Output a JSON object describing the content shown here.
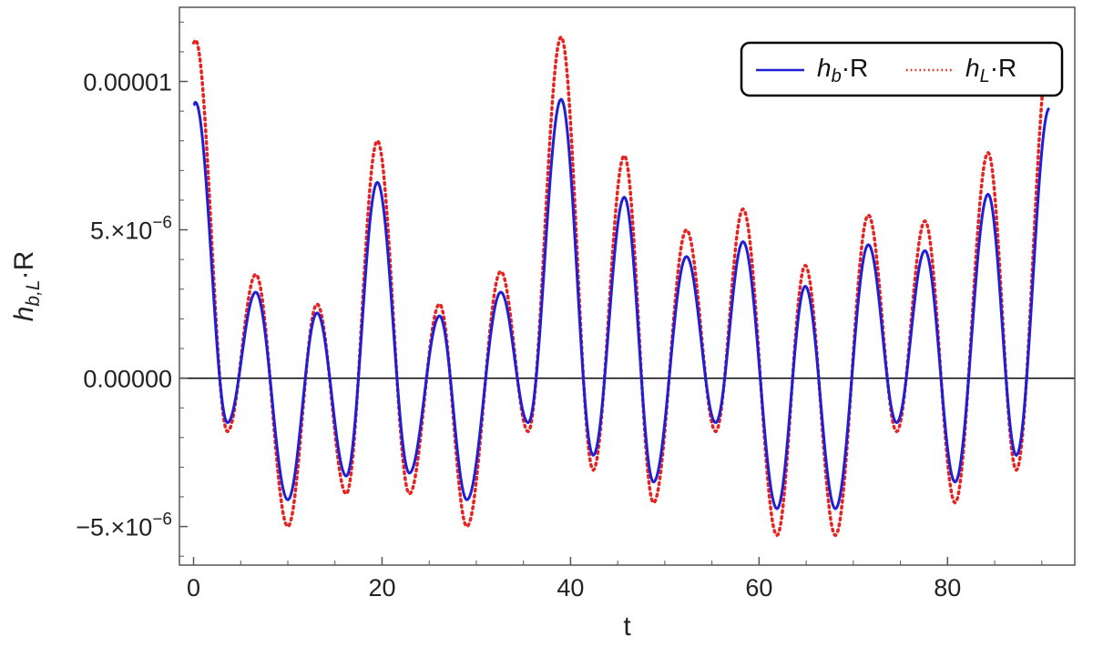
{
  "chart_data": {
    "type": "line",
    "xlabel": "t",
    "ylabel": "h_{b,L}·R",
    "xlim": [
      -1.5,
      93.5
    ],
    "ylim": [
      -6.3e-06,
      1.25e-05
    ],
    "x_ticks": [
      {
        "value": 0,
        "label": "0"
      },
      {
        "value": 20,
        "label": "20"
      },
      {
        "value": 40,
        "label": "40"
      },
      {
        "value": 60,
        "label": "60"
      },
      {
        "value": 80,
        "label": "80"
      }
    ],
    "y_ticks": [
      {
        "value": -5e-06,
        "label": "−5.×10",
        "exp": "−6"
      },
      {
        "value": 0,
        "label": "0.00000",
        "exp": ""
      },
      {
        "value": 5e-06,
        "label": "5.×10",
        "exp": "−6"
      },
      {
        "value": 1e-05,
        "label": "0.00001",
        "exp": ""
      }
    ],
    "grid": false,
    "zero_line": true,
    "legend": {
      "position": "top-right",
      "entries": [
        {
          "symbol": "h",
          "sub": "b",
          "suffix": "·R",
          "color": "#1f1fd6",
          "style": "solid"
        },
        {
          "symbol": "h",
          "sub": "L",
          "suffix": "·R",
          "color": "#e8231f",
          "style": "dotted"
        }
      ]
    },
    "series": [
      {
        "name": "h_b·R",
        "color": "#1f1fd6",
        "style": "solid",
        "start": {
          "t": 0.0,
          "v": 9.2e-06
        },
        "extrema": [
          {
            "t": 0.2,
            "v": 9.3e-06
          },
          {
            "t": 3.6,
            "v": -1.5e-06
          },
          {
            "t": 6.6,
            "v": 2.9e-06
          },
          {
            "t": 10.0,
            "v": -4.1e-06
          },
          {
            "t": 13.1,
            "v": 2.2e-06
          },
          {
            "t": 16.2,
            "v": -3.3e-06
          },
          {
            "t": 19.5,
            "v": 6.6e-06
          },
          {
            "t": 22.9,
            "v": -3.2e-06
          },
          {
            "t": 26.1,
            "v": 2.1e-06
          },
          {
            "t": 29.0,
            "v": -4.1e-06
          },
          {
            "t": 32.6,
            "v": 2.9e-06
          },
          {
            "t": 35.5,
            "v": -1.5e-06
          },
          {
            "t": 39.0,
            "v": 9.4e-06
          },
          {
            "t": 42.4,
            "v": -2.6e-06
          },
          {
            "t": 45.7,
            "v": 6.1e-06
          },
          {
            "t": 48.8,
            "v": -3.5e-06
          },
          {
            "t": 52.3,
            "v": 4.1e-06
          },
          {
            "t": 55.4,
            "v": -1.5e-06
          },
          {
            "t": 58.3,
            "v": 4.6e-06
          },
          {
            "t": 61.9,
            "v": -4.4e-06
          },
          {
            "t": 64.9,
            "v": 3.1e-06
          },
          {
            "t": 68.1,
            "v": -4.4e-06
          },
          {
            "t": 71.6,
            "v": 4.5e-06
          },
          {
            "t": 74.6,
            "v": -1.5e-06
          },
          {
            "t": 77.6,
            "v": 4.3e-06
          },
          {
            "t": 80.8,
            "v": -3.5e-06
          },
          {
            "t": 84.3,
            "v": 6.2e-06
          },
          {
            "t": 87.3,
            "v": -2.6e-06
          }
        ],
        "end": {
          "t": 90.8,
          "v": 9.1e-06
        }
      },
      {
        "name": "h_L·R",
        "color": "#e8231f",
        "style": "dotted",
        "start": {
          "t": 0.0,
          "v": 1.13e-05
        },
        "extrema": [
          {
            "t": 0.2,
            "v": 1.14e-05
          },
          {
            "t": 3.6,
            "v": -1.8e-06
          },
          {
            "t": 6.6,
            "v": 3.5e-06
          },
          {
            "t": 10.0,
            "v": -5e-06
          },
          {
            "t": 13.1,
            "v": 2.5e-06
          },
          {
            "t": 16.2,
            "v": -3.9e-06
          },
          {
            "t": 19.5,
            "v": 8e-06
          },
          {
            "t": 22.9,
            "v": -3.9e-06
          },
          {
            "t": 26.1,
            "v": 2.5e-06
          },
          {
            "t": 29.0,
            "v": -5e-06
          },
          {
            "t": 32.6,
            "v": 3.6e-06
          },
          {
            "t": 35.5,
            "v": -1.8e-06
          },
          {
            "t": 39.0,
            "v": 1.15e-05
          },
          {
            "t": 42.4,
            "v": -3.1e-06
          },
          {
            "t": 45.7,
            "v": 7.5e-06
          },
          {
            "t": 48.8,
            "v": -4.2e-06
          },
          {
            "t": 52.3,
            "v": 5e-06
          },
          {
            "t": 55.4,
            "v": -1.8e-06
          },
          {
            "t": 58.3,
            "v": 5.7e-06
          },
          {
            "t": 61.9,
            "v": -5.3e-06
          },
          {
            "t": 64.9,
            "v": 3.8e-06
          },
          {
            "t": 68.1,
            "v": -5.3e-06
          },
          {
            "t": 71.6,
            "v": 5.5e-06
          },
          {
            "t": 74.6,
            "v": -1.8e-06
          },
          {
            "t": 77.6,
            "v": 5.3e-06
          },
          {
            "t": 80.8,
            "v": -4.2e-06
          },
          {
            "t": 84.3,
            "v": 7.6e-06
          },
          {
            "t": 87.3,
            "v": -3.1e-06
          }
        ],
        "end": {
          "t": 90.8,
          "v": 1.11e-05
        }
      }
    ]
  }
}
